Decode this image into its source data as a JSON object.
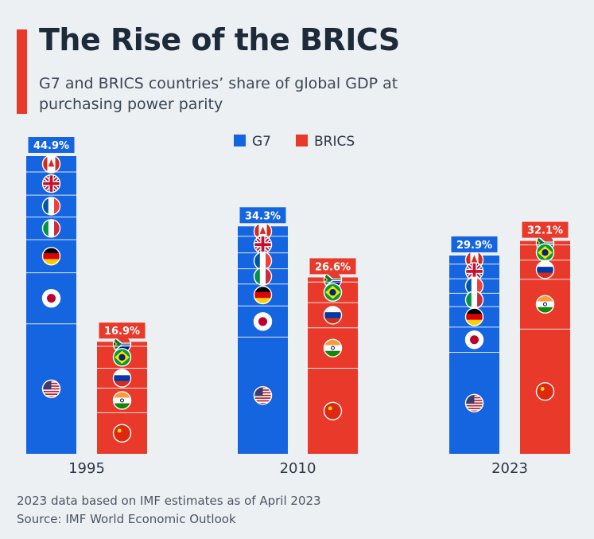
{
  "header": {
    "title": "The Rise of the BRICS",
    "subtitle": "G7 and BRICS countries’ share of global GDP at purchasing power parity"
  },
  "footer": {
    "note": "2023 data based on IMF estimates as of April 2023",
    "source": "Source: IMF World Economic Outlook"
  },
  "colors": {
    "g7": "#1565e0",
    "brics": "#e8392a",
    "accent": "#e8392a"
  },
  "chart_data": {
    "type": "bar",
    "title": "The Rise of the BRICS",
    "categories": [
      "1995",
      "2010",
      "2023"
    ],
    "ylim": [
      0,
      44.9
    ],
    "grid": false,
    "legend_position": "top-center",
    "series": [
      {
        "name": "G7",
        "color": "#1565e0",
        "values": [
          44.9,
          34.3,
          29.9
        ],
        "labels": [
          "44.9%",
          "34.3%",
          "29.9%"
        ],
        "segments_top_to_bottom": [
          "Canada",
          "United Kingdom",
          "France",
          "Italy",
          "Germany",
          "Japan",
          "United States"
        ],
        "segment_shares": [
          [
            2.4,
            3.5,
            3.3,
            3.4,
            5.0,
            7.7,
            19.6
          ],
          [
            1.5,
            2.5,
            2.4,
            2.3,
            3.3,
            4.7,
            17.6
          ],
          [
            1.3,
            2.2,
            2.2,
            2.0,
            3.1,
            3.8,
            15.3
          ]
        ]
      },
      {
        "name": "BRICS",
        "color": "#e8392a",
        "values": [
          16.9,
          26.6,
          32.1
        ],
        "labels": [
          "16.9%",
          "26.6%",
          "32.1%"
        ],
        "segments_top_to_bottom": [
          "South Africa",
          "Brazil",
          "Russia",
          "India",
          "China"
        ],
        "segment_shares": [
          [
            0.7,
            3.3,
            3.0,
            3.7,
            6.2
          ],
          [
            0.7,
            3.1,
            3.8,
            6.1,
            12.9
          ],
          [
            0.6,
            2.3,
            2.9,
            7.5,
            18.8
          ]
        ]
      }
    ]
  }
}
